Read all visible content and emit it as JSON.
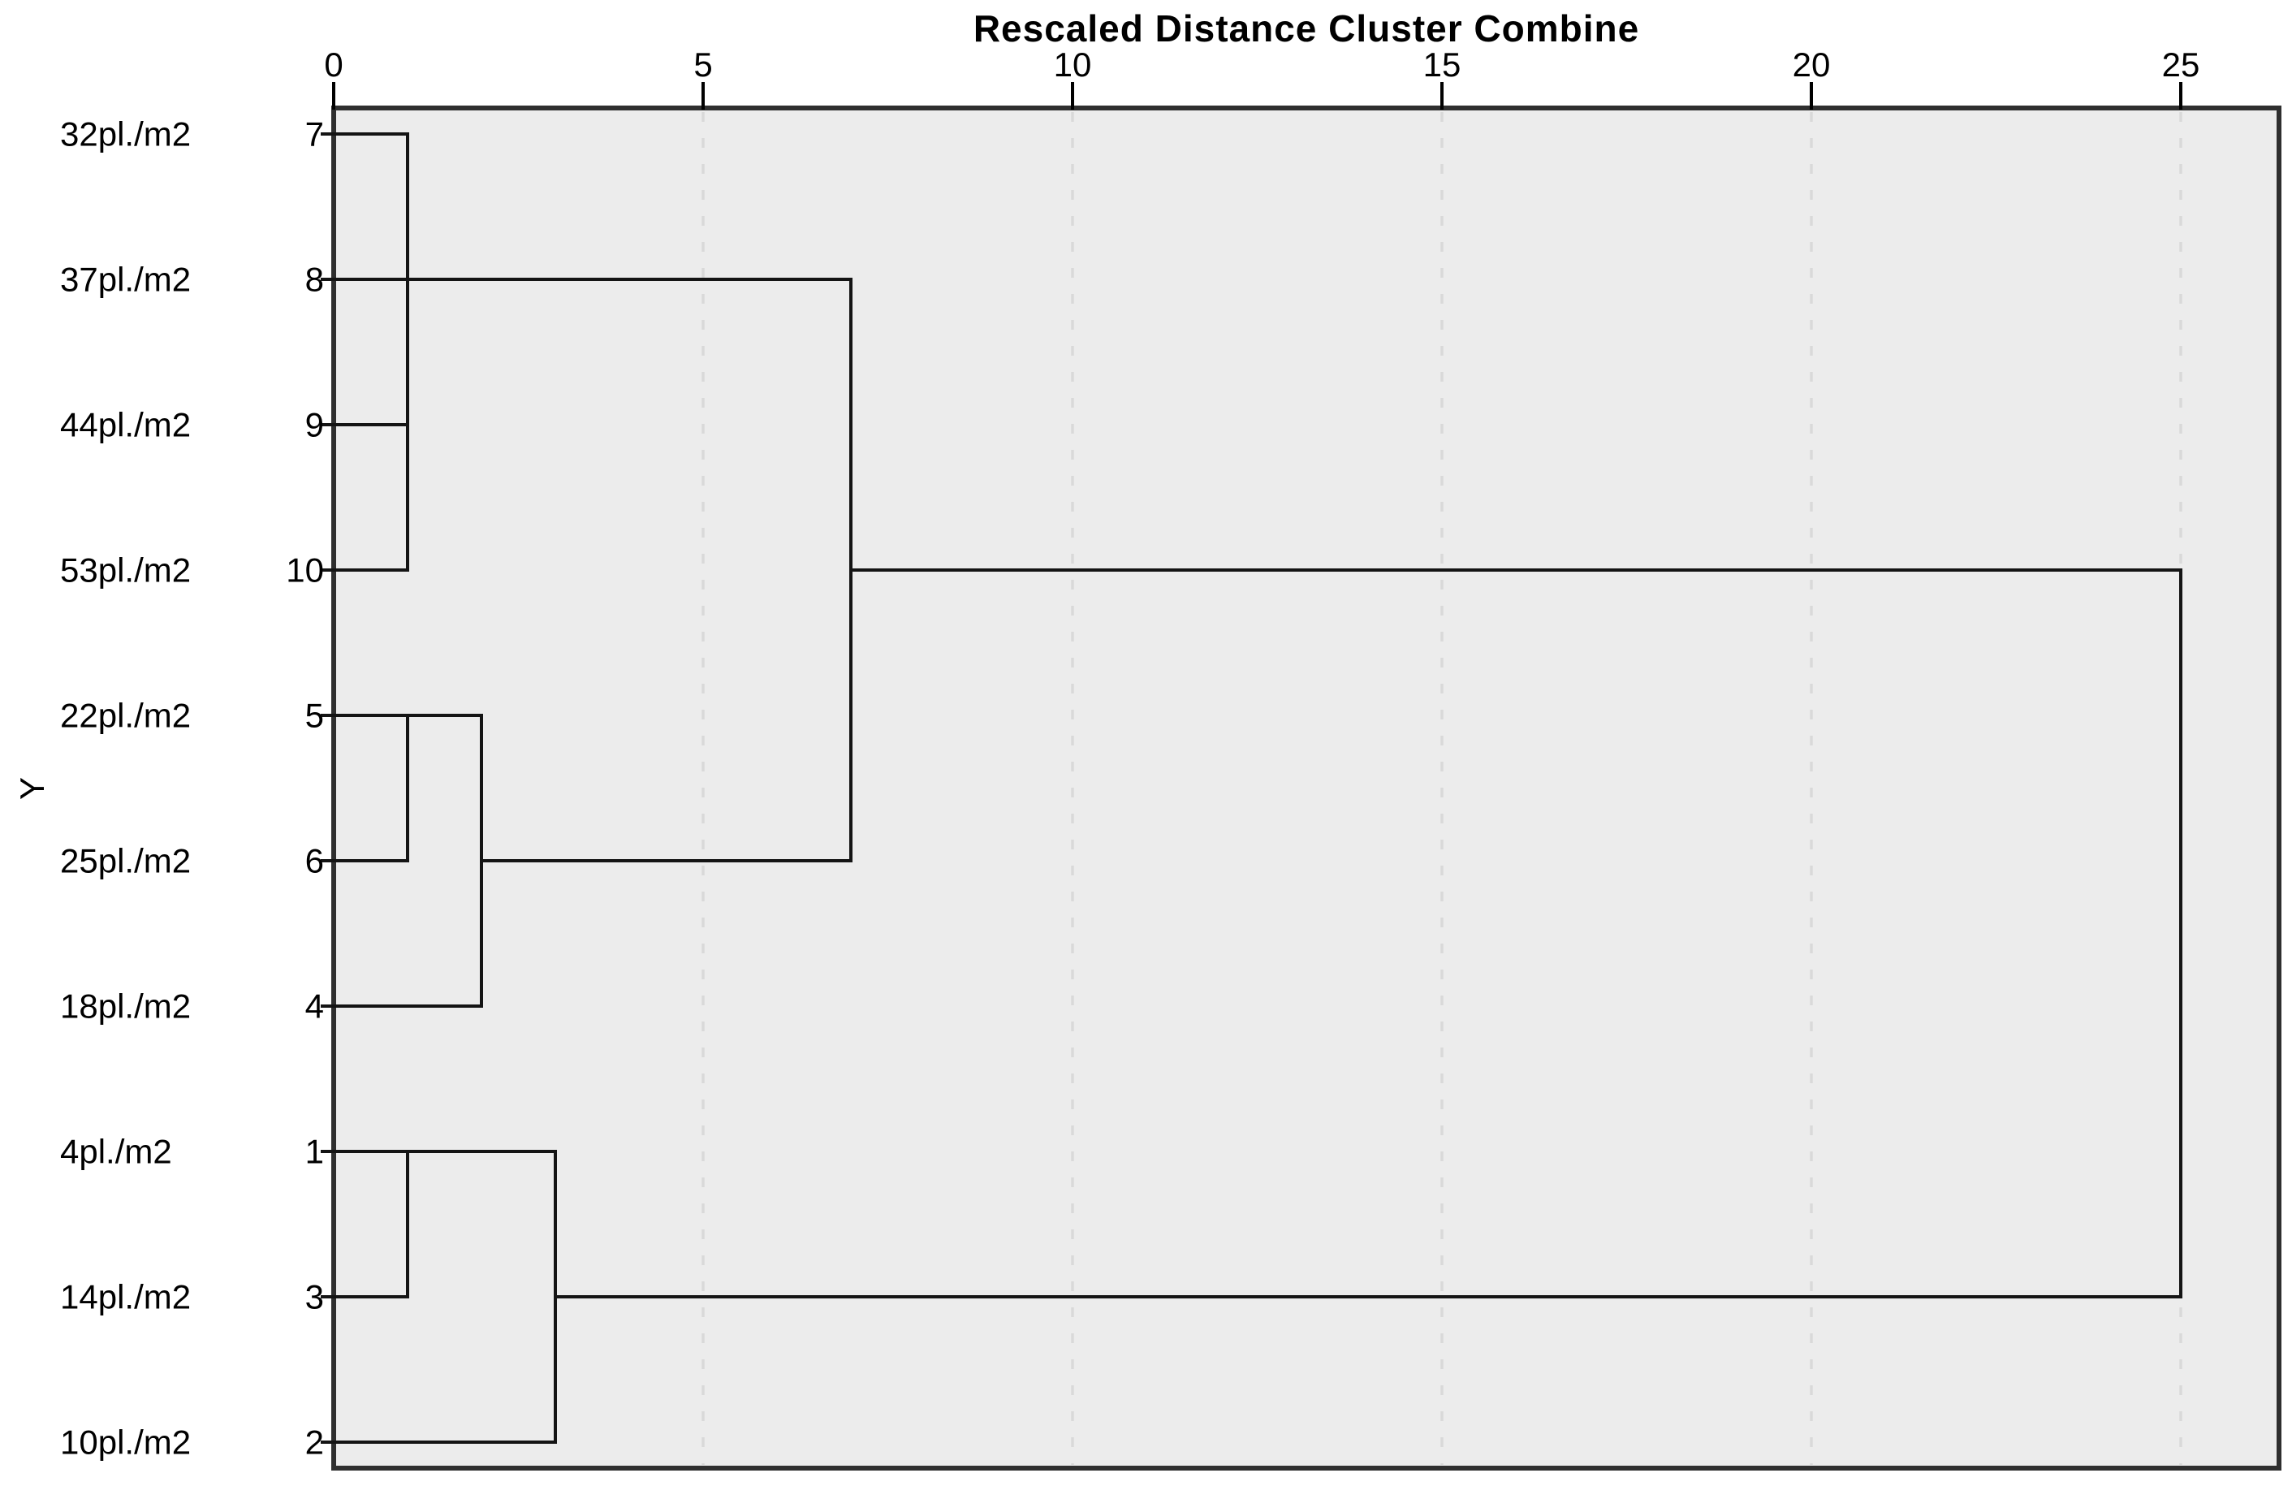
{
  "chart_data": {
    "type": "dendrogram",
    "title": "Rescaled Distance Cluster Combine",
    "ylabel": "Y",
    "x_axis": {
      "ticks": [
        0,
        5,
        10,
        15,
        20,
        25
      ],
      "range": [
        0,
        25
      ],
      "gridlines_at": [
        5,
        10,
        15,
        20,
        25
      ],
      "grid_style": "dashed",
      "position": "top"
    },
    "legend": "none",
    "leaves": [
      {
        "label": "32pl./m2",
        "case": "7",
        "joins_at_distance": 1
      },
      {
        "label": "37pl./m2",
        "case": "8",
        "joins_at_distance": 7
      },
      {
        "label": "44pl./m2",
        "case": "9",
        "joins_at_distance": 1
      },
      {
        "label": "53pl./m2",
        "case": "10",
        "joins_at_distance": 1
      },
      {
        "label": "22pl./m2",
        "case": "5",
        "joins_at_distance": 1
      },
      {
        "label": "25pl./m2",
        "case": "6",
        "joins_at_distance": 1
      },
      {
        "label": "18pl./m2",
        "case": "4",
        "joins_at_distance": 2
      },
      {
        "label": "4pl./m2",
        "case": "1",
        "joins_at_distance": 1
      },
      {
        "label": "14pl./m2",
        "case": "3",
        "joins_at_distance": 1
      },
      {
        "label": "10pl./m2",
        "case": "2",
        "joins_at_distance": 3
      }
    ],
    "merges": [
      {
        "cluster": [
          "7",
          "8",
          "9",
          "10"
        ],
        "distance": 1
      },
      {
        "cluster": [
          "5",
          "6"
        ],
        "distance": 1
      },
      {
        "cluster": [
          "5",
          "6",
          "4"
        ],
        "distance": 2
      },
      {
        "cluster": [
          "1",
          "3"
        ],
        "distance": 1
      },
      {
        "cluster": [
          "1",
          "3",
          "2"
        ],
        "distance": 3
      },
      {
        "cluster": [
          "7",
          "8",
          "9",
          "10",
          "5",
          "6",
          "4"
        ],
        "distance": 7
      },
      {
        "cluster": [
          "7",
          "8",
          "9",
          "10",
          "5",
          "6",
          "4",
          "1",
          "3",
          "2"
        ],
        "distance": 25
      }
    ],
    "links": {
      "verticals": [
        {
          "at": 1,
          "from_case": "7",
          "to_case": "10"
        },
        {
          "at": 1,
          "from_case": "5",
          "to_case": "6"
        },
        {
          "at": 2,
          "from_case": "5",
          "to_case": "4"
        },
        {
          "at": 7,
          "from_case": "8",
          "to_case": "6"
        },
        {
          "at": 1,
          "from_case": "1",
          "to_case": "3"
        },
        {
          "at": 3,
          "from_case": "1",
          "to_case": "2"
        },
        {
          "at": 25,
          "from_case": "10",
          "to_case": "3"
        }
      ],
      "horizontals": [
        {
          "at_case": "5",
          "from": 1,
          "to": 2
        },
        {
          "at_case": "6",
          "from": 2,
          "to": 7
        },
        {
          "at_case": "10",
          "from": 7,
          "to": 25
        },
        {
          "at_case": "1",
          "from": 1,
          "to": 3
        },
        {
          "at_case": "3",
          "from": 3,
          "to": 25
        }
      ]
    },
    "colors": {
      "plot_background": "#ececec",
      "frame": "#2f2f2f",
      "line": "#141414",
      "gridline": "#d9d9d9",
      "text": "#000000",
      "page_background": "#ffffff"
    }
  }
}
